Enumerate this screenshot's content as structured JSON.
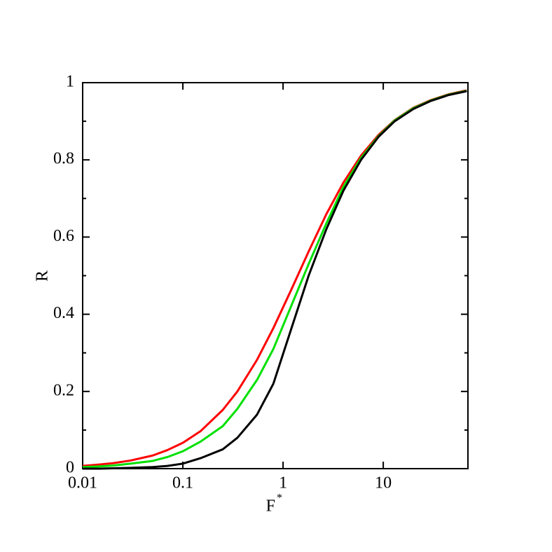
{
  "chart_data": {
    "type": "line",
    "xlabel": {
      "base": "F",
      "sup": "*"
    },
    "ylabel": "R",
    "xscale": "log",
    "x": [
      0.01,
      0.015,
      0.02,
      0.03,
      0.05,
      0.07,
      0.1,
      0.15,
      0.25,
      0.35,
      0.55,
      0.8,
      1.2,
      1.8,
      2.7,
      4,
      6,
      9,
      13,
      20,
      30,
      45,
      68
    ],
    "series": [
      {
        "color": "#ff0000",
        "values": [
          0.007,
          0.011,
          0.014,
          0.021,
          0.034,
          0.048,
          0.067,
          0.097,
          0.152,
          0.2,
          0.282,
          0.364,
          0.462,
          0.5625,
          0.659,
          0.741,
          0.811,
          0.865,
          0.903,
          0.935,
          0.955,
          0.97,
          0.98
        ]
      },
      {
        "color": "#00e000",
        "values": [
          0.004,
          0.006,
          0.008,
          0.013,
          0.02,
          0.03,
          0.045,
          0.07,
          0.11,
          0.155,
          0.23,
          0.31,
          0.42,
          0.53,
          0.635,
          0.73,
          0.805,
          0.862,
          0.902,
          0.934,
          0.954,
          0.969,
          0.979
        ]
      },
      {
        "color": "#000000",
        "values": [
          0,
          0,
          0.001,
          0.002,
          0.004,
          0.007,
          0.013,
          0.027,
          0.05,
          0.08,
          0.14,
          0.22,
          0.36,
          0.5,
          0.62,
          0.72,
          0.8,
          0.86,
          0.9,
          0.932,
          0.953,
          0.968,
          0.978
        ]
      }
    ],
    "xlim": [
      0.01,
      70
    ],
    "xticks": [
      0.01,
      0.1,
      1,
      10
    ],
    "ylim": [
      0,
      1
    ],
    "yticks": [
      0,
      0.2,
      0.4,
      0.6,
      0.8,
      1
    ],
    "yminorticks": [
      0.1,
      0.3,
      0.5,
      0.7,
      0.9
    ]
  }
}
